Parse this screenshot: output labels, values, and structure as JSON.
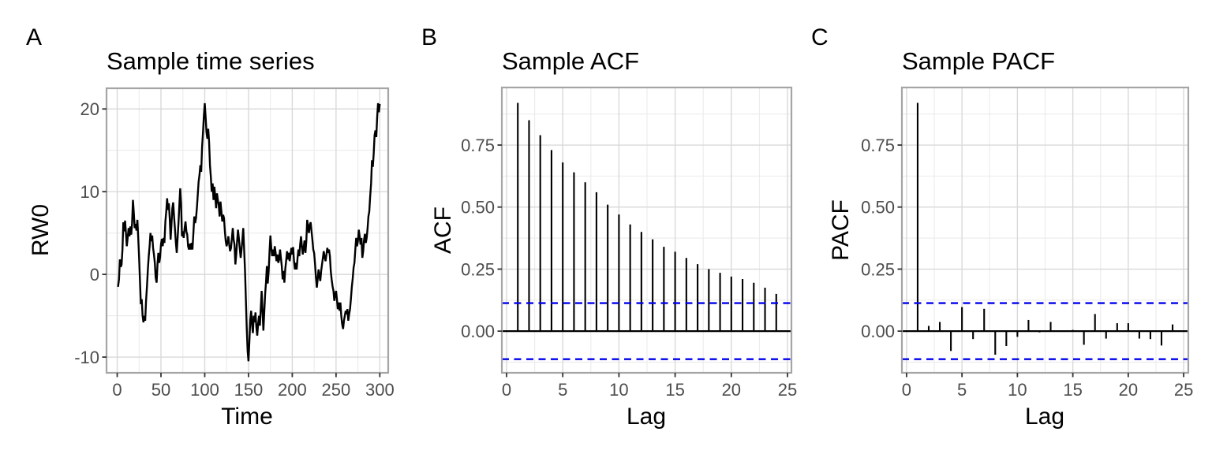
{
  "figure": {
    "background": "#FFFFFF"
  },
  "colors": {
    "series": "#000000",
    "conf_line": "#0000EB",
    "zero_line": "#000000",
    "grid_major": "#D9D9D9",
    "grid_minor": "#EBEBEB",
    "panel_border": "#A5A5A5",
    "panel_fill": "#FFFFFF",
    "tick_mark": "#333333",
    "tick_label": "#4D4D4D",
    "text": "#000000"
  },
  "chart_data": [
    {
      "type": "line",
      "tag": "A",
      "title": "Sample time series",
      "xlabel": "Time",
      "ylabel": "RW0",
      "xlim": [
        -12.2,
        309.6
      ],
      "ylim": [
        -11.9,
        22.5
      ],
      "x_ticks": [
        0,
        50,
        100,
        150,
        200,
        250,
        300
      ],
      "x_tick_labels": [
        "0",
        "50",
        "100",
        "150",
        "200",
        "250",
        "300"
      ],
      "x_minor": [
        25,
        75,
        125,
        175,
        225,
        275
      ],
      "y_ticks": [
        -10,
        0,
        10,
        20
      ],
      "y_tick_labels": [
        "-10",
        "0",
        "10",
        "20"
      ],
      "y_minor": [
        -5,
        5,
        15
      ],
      "grid": true,
      "points": [
        [
          1,
          -1.5
        ],
        [
          2,
          -0.6
        ],
        [
          3,
          1.8
        ],
        [
          4,
          0.9
        ],
        [
          5,
          1.2
        ],
        [
          6,
          3.0
        ],
        [
          7,
          6.3
        ],
        [
          8,
          5.2
        ],
        [
          9,
          6.5
        ],
        [
          10,
          5.0
        ],
        [
          11,
          3.4
        ],
        [
          12,
          4.4
        ],
        [
          13,
          5.6
        ],
        [
          14,
          4.6
        ],
        [
          15,
          5.8
        ],
        [
          16,
          4.8
        ],
        [
          17,
          6.2
        ],
        [
          18,
          9.0
        ],
        [
          19,
          7.4
        ],
        [
          20,
          5.6
        ],
        [
          21,
          6.1
        ],
        [
          22,
          5.3
        ],
        [
          23,
          6.6
        ],
        [
          24,
          4.4
        ],
        [
          25,
          2.0
        ],
        [
          26,
          -0.8
        ],
        [
          27,
          -3.6
        ],
        [
          28,
          -3.0
        ],
        [
          29,
          -5.0
        ],
        [
          30,
          -5.8
        ],
        [
          31,
          -5.0
        ],
        [
          32,
          -5.6
        ],
        [
          33,
          -3.2
        ],
        [
          34,
          -1.4
        ],
        [
          35,
          0.6
        ],
        [
          36,
          2.2
        ],
        [
          37,
          3.4
        ],
        [
          38,
          5.0
        ],
        [
          39,
          4.0
        ],
        [
          40,
          4.7
        ],
        [
          41,
          3.2
        ],
        [
          42,
          2.4
        ],
        [
          43,
          1.4
        ],
        [
          44,
          -0.4
        ],
        [
          45,
          -1.0
        ],
        [
          46,
          1.2
        ],
        [
          47,
          2.6
        ],
        [
          48,
          1.4
        ],
        [
          49,
          2.1
        ],
        [
          50,
          3.6
        ],
        [
          51,
          4.3
        ],
        [
          52,
          3.4
        ],
        [
          53,
          4.4
        ],
        [
          54,
          3.8
        ],
        [
          55,
          6.4
        ],
        [
          56,
          7.6
        ],
        [
          57,
          9.2
        ],
        [
          58,
          7.8
        ],
        [
          59,
          8.6
        ],
        [
          60,
          6.8
        ],
        [
          61,
          4.2
        ],
        [
          62,
          6.0
        ],
        [
          63,
          8.0
        ],
        [
          64,
          8.7
        ],
        [
          65,
          7.0
        ],
        [
          66,
          5.4
        ],
        [
          67,
          3.8
        ],
        [
          68,
          2.6
        ],
        [
          69,
          4.4
        ],
        [
          70,
          6.2
        ],
        [
          71,
          8.4
        ],
        [
          72,
          10.4
        ],
        [
          73,
          8.6
        ],
        [
          74,
          4.6
        ],
        [
          75,
          5.2
        ],
        [
          76,
          4.4
        ],
        [
          77,
          5.6
        ],
        [
          78,
          6.4
        ],
        [
          79,
          5.2
        ],
        [
          80,
          4.8
        ],
        [
          81,
          3.4
        ],
        [
          82,
          3.0
        ],
        [
          83,
          3.7
        ],
        [
          84,
          3.0
        ],
        [
          85,
          3.8
        ],
        [
          86,
          3.0
        ],
        [
          87,
          5.0
        ],
        [
          88,
          7.0
        ],
        [
          89,
          6.2
        ],
        [
          90,
          6.8
        ],
        [
          91,
          8.0
        ],
        [
          92,
          9.6
        ],
        [
          93,
          11.2
        ],
        [
          94,
          12.0
        ],
        [
          95,
          13.2
        ],
        [
          96,
          12.4
        ],
        [
          97,
          15.4
        ],
        [
          98,
          17.2
        ],
        [
          99,
          19.2
        ],
        [
          100,
          20.7
        ],
        [
          101,
          19.0
        ],
        [
          102,
          17.2
        ],
        [
          103,
          16.4
        ],
        [
          104,
          17.6
        ],
        [
          105,
          16.0
        ],
        [
          106,
          13.2
        ],
        [
          107,
          11.8
        ],
        [
          108,
          10.0
        ],
        [
          109,
          11.0
        ],
        [
          110,
          9.0
        ],
        [
          111,
          10.6
        ],
        [
          112,
          9.4
        ],
        [
          113,
          8.0
        ],
        [
          114,
          9.8
        ],
        [
          115,
          9.0
        ],
        [
          116,
          8.4
        ],
        [
          117,
          7.0
        ],
        [
          118,
          8.8
        ],
        [
          119,
          7.6
        ],
        [
          120,
          6.4
        ],
        [
          121,
          7.2
        ],
        [
          122,
          6.8
        ],
        [
          123,
          5.2
        ],
        [
          124,
          4.0
        ],
        [
          125,
          3.4
        ],
        [
          126,
          3.9
        ],
        [
          127,
          4.6
        ],
        [
          128,
          3.6
        ],
        [
          129,
          2.8
        ],
        [
          130,
          3.2
        ],
        [
          131,
          4.4
        ],
        [
          132,
          5.6
        ],
        [
          133,
          4.2
        ],
        [
          134,
          3.6
        ],
        [
          135,
          1.2
        ],
        [
          136,
          2.4
        ],
        [
          137,
          4.0
        ],
        [
          138,
          5.4
        ],
        [
          139,
          4.4
        ],
        [
          140,
          3.2
        ],
        [
          141,
          2.0
        ],
        [
          142,
          3.0
        ],
        [
          143,
          4.2
        ],
        [
          144,
          5.6
        ],
        [
          145,
          3.0
        ],
        [
          146,
          0.5
        ],
        [
          147,
          -3.0
        ],
        [
          148,
          -6.5
        ],
        [
          149,
          -9.2
        ],
        [
          150,
          -10.5
        ],
        [
          151,
          -8.0
        ],
        [
          152,
          -5.5
        ],
        [
          153,
          -4.4
        ],
        [
          154,
          -6.0
        ],
        [
          155,
          -7.1
        ],
        [
          156,
          -5.0
        ],
        [
          157,
          -5.8
        ],
        [
          158,
          -4.6
        ],
        [
          159,
          -6.4
        ],
        [
          160,
          -7.4
        ],
        [
          161,
          -6.0
        ],
        [
          162,
          -5.0
        ],
        [
          163,
          -6.2
        ],
        [
          164,
          -4.1
        ],
        [
          165,
          -2.0
        ],
        [
          166,
          -4.4
        ],
        [
          167,
          -6.8
        ],
        [
          168,
          -4.6
        ],
        [
          169,
          -2.4
        ],
        [
          170,
          -1.0
        ],
        [
          171,
          1.0
        ],
        [
          172,
          -1.1
        ],
        [
          173,
          0.4
        ],
        [
          174,
          2.8
        ],
        [
          175,
          4.7
        ],
        [
          176,
          3.2
        ],
        [
          177,
          2.2
        ],
        [
          178,
          3.0
        ],
        [
          179,
          2.2
        ],
        [
          180,
          3.4
        ],
        [
          181,
          2.6
        ],
        [
          182,
          1.6
        ],
        [
          183,
          2.4
        ],
        [
          184,
          1.4
        ],
        [
          185,
          1.8
        ],
        [
          186,
          3.0
        ],
        [
          187,
          2.0
        ],
        [
          188,
          1.0
        ],
        [
          189,
          -0.6
        ],
        [
          190,
          0.4
        ],
        [
          191,
          -1.0
        ],
        [
          192,
          0.6
        ],
        [
          193,
          1.6
        ],
        [
          194,
          2.8
        ],
        [
          195,
          1.8
        ],
        [
          196,
          2.6
        ],
        [
          197,
          1.6
        ],
        [
          198,
          2.4
        ],
        [
          199,
          3.2
        ],
        [
          200,
          2.4
        ],
        [
          201,
          3.3
        ],
        [
          202,
          1.6
        ],
        [
          203,
          0.6
        ],
        [
          204,
          1.4
        ],
        [
          205,
          0.6
        ],
        [
          206,
          2.0
        ],
        [
          207,
          3.0
        ],
        [
          208,
          2.2
        ],
        [
          209,
          3.6
        ],
        [
          210,
          4.6
        ],
        [
          211,
          3.4
        ],
        [
          212,
          2.4
        ],
        [
          213,
          3.2
        ],
        [
          214,
          4.1
        ],
        [
          215,
          2.6
        ],
        [
          216,
          4.0
        ],
        [
          217,
          6.6
        ],
        [
          218,
          5.8
        ],
        [
          219,
          5.0
        ],
        [
          220,
          6.0
        ],
        [
          221,
          6.3
        ],
        [
          222,
          5.2
        ],
        [
          223,
          4.2
        ],
        [
          224,
          3.0
        ],
        [
          225,
          2.6
        ],
        [
          226,
          1.2
        ],
        [
          227,
          -0.4
        ],
        [
          228,
          -1.6
        ],
        [
          229,
          -0.6
        ],
        [
          230,
          0.6
        ],
        [
          231,
          -0.2
        ],
        [
          232,
          -0.8
        ],
        [
          233,
          0.4
        ],
        [
          234,
          1.2
        ],
        [
          235,
          2.0
        ],
        [
          236,
          2.8
        ],
        [
          237,
          2.0
        ],
        [
          238,
          1.6
        ],
        [
          239,
          2.4
        ],
        [
          240,
          3.2
        ],
        [
          241,
          2.6
        ],
        [
          242,
          3.0
        ],
        [
          243,
          2.2
        ],
        [
          244,
          0.4
        ],
        [
          245,
          -0.6
        ],
        [
          246,
          -1.4
        ],
        [
          247,
          -2.0
        ],
        [
          248,
          -3.2
        ],
        [
          249,
          -2.4
        ],
        [
          250,
          -2.0
        ],
        [
          251,
          -3.0
        ],
        [
          252,
          -4.2
        ],
        [
          253,
          -3.4
        ],
        [
          254,
          -4.4
        ],
        [
          255,
          -3.4
        ],
        [
          256,
          -5.0
        ],
        [
          257,
          -6.0
        ],
        [
          258,
          -6.6
        ],
        [
          259,
          -5.6
        ],
        [
          260,
          -5.0
        ],
        [
          261,
          -4.4
        ],
        [
          262,
          -4.8
        ],
        [
          263,
          -4.2
        ],
        [
          264,
          -5.6
        ],
        [
          265,
          -4.8
        ],
        [
          266,
          -4.2
        ],
        [
          267,
          -3.0
        ],
        [
          268,
          -1.6
        ],
        [
          269,
          -0.5
        ],
        [
          270,
          0.8
        ],
        [
          271,
          1.4
        ],
        [
          272,
          3.0
        ],
        [
          273,
          4.4
        ],
        [
          274,
          3.4
        ],
        [
          275,
          4.0
        ],
        [
          276,
          5.4
        ],
        [
          277,
          4.6
        ],
        [
          278,
          3.6
        ],
        [
          279,
          4.4
        ],
        [
          280,
          2.0
        ],
        [
          281,
          2.8
        ],
        [
          282,
          4.2
        ],
        [
          283,
          4.9
        ],
        [
          284,
          3.8
        ],
        [
          285,
          4.4
        ],
        [
          286,
          5.5
        ],
        [
          287,
          7.0
        ],
        [
          288,
          7.6
        ],
        [
          289,
          9.4
        ],
        [
          290,
          11.0
        ],
        [
          291,
          13.8
        ],
        [
          292,
          13.0
        ],
        [
          293,
          14.6
        ],
        [
          294,
          16.8
        ],
        [
          295,
          17.4
        ],
        [
          296,
          16.6
        ],
        [
          297,
          19.0
        ],
        [
          298,
          20.7
        ],
        [
          299,
          19.6
        ],
        [
          300,
          20.6
        ]
      ]
    },
    {
      "type": "stem",
      "tag": "B",
      "title": "Sample ACF",
      "xlabel": "Lag",
      "ylabel": "ACF",
      "xlim": [
        -0.42,
        25.35
      ],
      "ylim": [
        -0.168,
        0.982
      ],
      "x_ticks": [
        0,
        5,
        10,
        15,
        20,
        25
      ],
      "x_tick_labels": [
        "0",
        "5",
        "10",
        "15",
        "20",
        "25"
      ],
      "x_minor": [
        2.5,
        7.5,
        12.5,
        17.5,
        22.5
      ],
      "y_ticks": [
        0,
        0.25,
        0.5,
        0.75
      ],
      "y_tick_labels": [
        "0.00",
        "0.25",
        "0.50",
        "0.75"
      ],
      "y_minor": [
        -0.125,
        0.125,
        0.375,
        0.625,
        0.875
      ],
      "grid": true,
      "zero_line": true,
      "conf_level": 0.113,
      "lags": [
        1,
        2,
        3,
        4,
        5,
        6,
        7,
        8,
        9,
        10,
        11,
        12,
        13,
        14,
        15,
        16,
        17,
        18,
        19,
        20,
        21,
        22,
        23,
        24
      ],
      "values": [
        0.92,
        0.85,
        0.79,
        0.73,
        0.68,
        0.64,
        0.6,
        0.56,
        0.51,
        0.47,
        0.43,
        0.4,
        0.37,
        0.34,
        0.32,
        0.295,
        0.27,
        0.25,
        0.235,
        0.22,
        0.21,
        0.195,
        0.175,
        0.15
      ]
    },
    {
      "type": "stem",
      "tag": "C",
      "title": "Sample PACF",
      "xlabel": "Lag",
      "ylabel": "PACF",
      "xlim": [
        -0.42,
        25.42
      ],
      "ylim": [
        -0.168,
        0.982
      ],
      "x_ticks": [
        0,
        5,
        10,
        15,
        20,
        25
      ],
      "x_tick_labels": [
        "0",
        "5",
        "10",
        "15",
        "20",
        "25"
      ],
      "x_minor": [
        2.5,
        7.5,
        12.5,
        17.5,
        22.5
      ],
      "y_ticks": [
        0,
        0.25,
        0.5,
        0.75
      ],
      "y_tick_labels": [
        "0.00",
        "0.25",
        "0.50",
        "0.75"
      ],
      "y_minor": [
        -0.125,
        0.125,
        0.375,
        0.625,
        0.875
      ],
      "grid": true,
      "zero_line": true,
      "conf_level": 0.113,
      "lags": [
        1,
        2,
        3,
        4,
        5,
        6,
        7,
        8,
        9,
        10,
        11,
        12,
        13,
        14,
        15,
        16,
        17,
        18,
        19,
        20,
        21,
        22,
        23,
        24
      ],
      "values": [
        0.92,
        0.021,
        0.037,
        -0.08,
        0.097,
        -0.032,
        0.09,
        -0.095,
        -0.06,
        -0.023,
        0.045,
        -0.005,
        0.037,
        0.002,
        0.005,
        -0.055,
        0.069,
        -0.03,
        0.032,
        0.032,
        -0.03,
        -0.032,
        -0.058,
        0.027
      ]
    }
  ]
}
